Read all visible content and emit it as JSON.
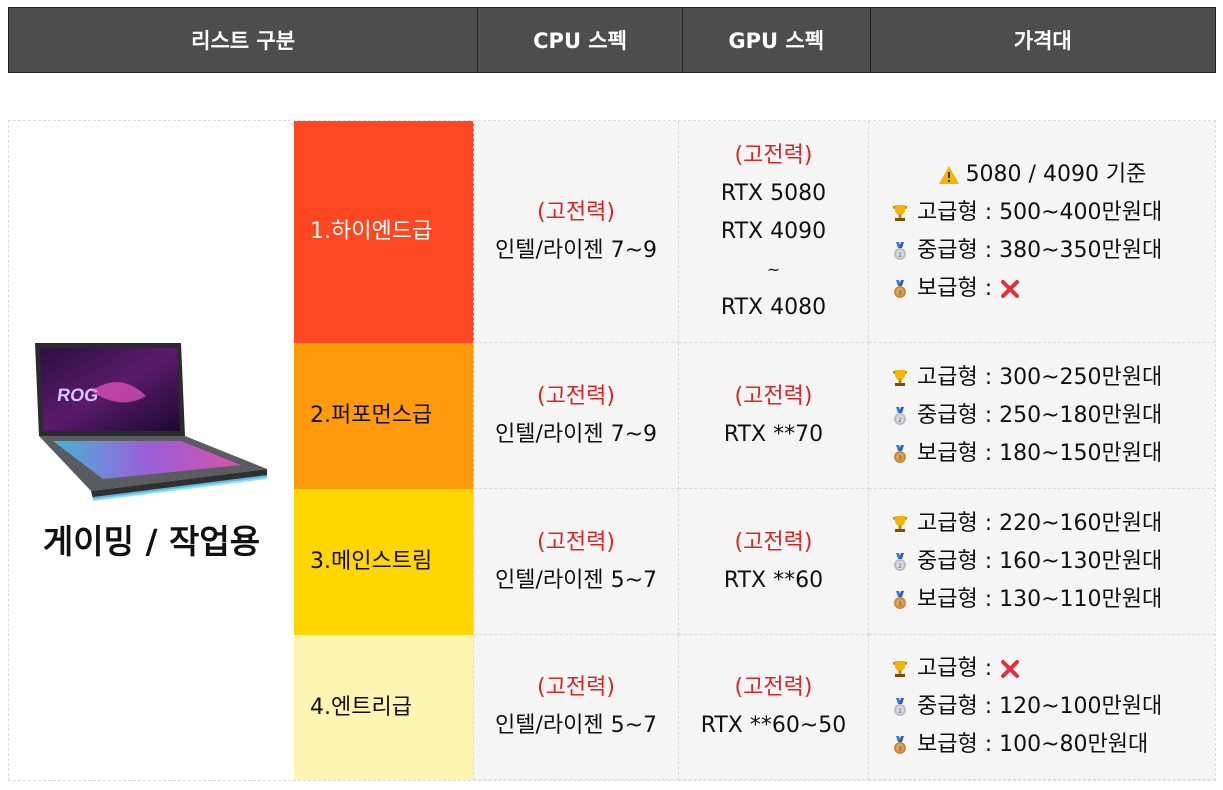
{
  "header": {
    "col1": "리스트 구분",
    "col2": "CPU 스펙",
    "col3": "GPU 스펙",
    "col4": "가격대"
  },
  "category": {
    "label": "게이밍 / 작업용",
    "image": "gaming-laptop-icon"
  },
  "colors": {
    "header_bg": "#4d4d4d",
    "tier1": "#ff4721",
    "tier2": "#ff9a0a",
    "tier3": "#ffd600",
    "tier4": "#fff5b3",
    "accent_red": "#e02424"
  },
  "rows": [
    {
      "tier": "1.하이엔드급",
      "cpu_tag": "(고전력)",
      "cpu": "인텔/라이젠 7~9",
      "gpu_tag": "(고전력)",
      "gpu_lines": [
        "RTX 5080",
        "RTX 4090",
        "~",
        "RTX 4080"
      ],
      "price_note": "5080 / 4090 기준",
      "prices": [
        {
          "icon": "trophy-icon",
          "label": "고급형 : 500~400만원대"
        },
        {
          "icon": "silver-medal-icon",
          "label": "중급형 : 380~350만원대"
        },
        {
          "icon": "bronze-medal-icon",
          "label": "보급형 : ",
          "cross": true
        }
      ]
    },
    {
      "tier": "2.퍼포먼스급",
      "cpu_tag": "(고전력)",
      "cpu": "인텔/라이젠 7~9",
      "gpu_tag": "(고전력)",
      "gpu_lines": [
        "RTX **70"
      ],
      "prices": [
        {
          "icon": "trophy-icon",
          "label": "고급형 : 300~250만원대"
        },
        {
          "icon": "silver-medal-icon",
          "label": "중급형 : 250~180만원대"
        },
        {
          "icon": "bronze-medal-icon",
          "label": "보급형 : 180~150만원대"
        }
      ]
    },
    {
      "tier": "3.메인스트림",
      "cpu_tag": "(고전력)",
      "cpu": "인텔/라이젠 5~7",
      "gpu_tag": "(고전력)",
      "gpu_lines": [
        "RTX **60"
      ],
      "prices": [
        {
          "icon": "trophy-icon",
          "label": "고급형 : 220~160만원대"
        },
        {
          "icon": "silver-medal-icon",
          "label": "중급형 : 160~130만원대"
        },
        {
          "icon": "bronze-medal-icon",
          "label": "보급형 : 130~110만원대"
        }
      ]
    },
    {
      "tier": "4.엔트리급",
      "cpu_tag": "(고전력)",
      "cpu": "인텔/라이젠 5~7",
      "gpu_tag": "(고전력)",
      "gpu_lines": [
        "RTX **60~50"
      ],
      "prices": [
        {
          "icon": "trophy-icon",
          "label": "고급형 : ",
          "cross": true
        },
        {
          "icon": "silver-medal-icon",
          "label": "중급형 : 120~100만원대"
        },
        {
          "icon": "bronze-medal-icon",
          "label": "보급형 : 100~80만원대"
        }
      ]
    }
  ]
}
